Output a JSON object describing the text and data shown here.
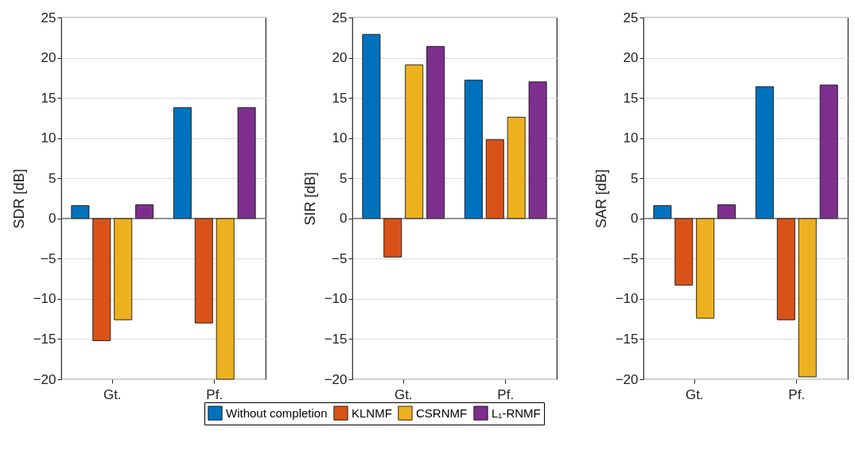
{
  "chart_data": [
    {
      "type": "bar",
      "categories": [
        "Gt.",
        "Pf."
      ],
      "ylabel": "SDR [dB]",
      "ylim": [
        -20,
        25
      ],
      "yticks": [
        -20,
        -15,
        -10,
        -5,
        0,
        5,
        10,
        15,
        20,
        25
      ],
      "grid": "y",
      "legend": "bottom",
      "ref_lines": [
        {
          "axis": "y",
          "value": 0,
          "color": "#404040"
        }
      ],
      "series": [
        {
          "name": "Without completion",
          "color": "#0072bd",
          "values": [
            1.6,
            13.8
          ]
        },
        {
          "name": "KLNMF",
          "color": "#d95319",
          "values": [
            -15.2,
            -13.0
          ]
        },
        {
          "name": "CSRNMF",
          "color": "#edb120",
          "values": [
            -12.6,
            -20
          ]
        },
        {
          "name": "L₁-RNMF",
          "color": "#7e2f8e",
          "values": [
            1.7,
            13.8
          ]
        }
      ]
    },
    {
      "type": "bar",
      "categories": [
        "Gt.",
        "Pf."
      ],
      "ylabel": "SIR [dB]",
      "ylim": [
        -20,
        25
      ],
      "yticks": [
        -20,
        -15,
        -10,
        -5,
        0,
        5,
        10,
        15,
        20,
        25
      ],
      "grid": "y",
      "legend": "bottom",
      "ref_lines": [
        {
          "axis": "y",
          "value": 0,
          "color": "#404040"
        }
      ],
      "series": [
        {
          "name": "Without completion",
          "color": "#0072bd",
          "values": [
            22.9,
            17.2
          ]
        },
        {
          "name": "KLNMF",
          "color": "#d95319",
          "values": [
            -4.8,
            9.8
          ]
        },
        {
          "name": "CSRNMF",
          "color": "#edb120",
          "values": [
            19.1,
            12.6
          ]
        },
        {
          "name": "L₁-RNMF",
          "color": "#7e2f8e",
          "values": [
            21.4,
            17.0
          ]
        }
      ]
    },
    {
      "type": "bar",
      "categories": [
        "Gt.",
        "Pf."
      ],
      "ylabel": "SAR [dB]",
      "ylim": [
        -20,
        25
      ],
      "yticks": [
        -20,
        -15,
        -10,
        -5,
        0,
        5,
        10,
        15,
        20,
        25
      ],
      "grid": "y",
      "legend": "bottom",
      "ref_lines": [
        {
          "axis": "y",
          "value": 0,
          "color": "#404040"
        }
      ],
      "series": [
        {
          "name": "Without completion",
          "color": "#0072bd",
          "values": [
            1.6,
            16.4
          ]
        },
        {
          "name": "KLNMF",
          "color": "#d95319",
          "values": [
            -8.3,
            -12.6
          ]
        },
        {
          "name": "CSRNMF",
          "color": "#edb120",
          "values": [
            -12.4,
            -19.7
          ]
        },
        {
          "name": "L₁-RNMF",
          "color": "#7e2f8e",
          "values": [
            1.7,
            16.6
          ]
        }
      ]
    }
  ]
}
